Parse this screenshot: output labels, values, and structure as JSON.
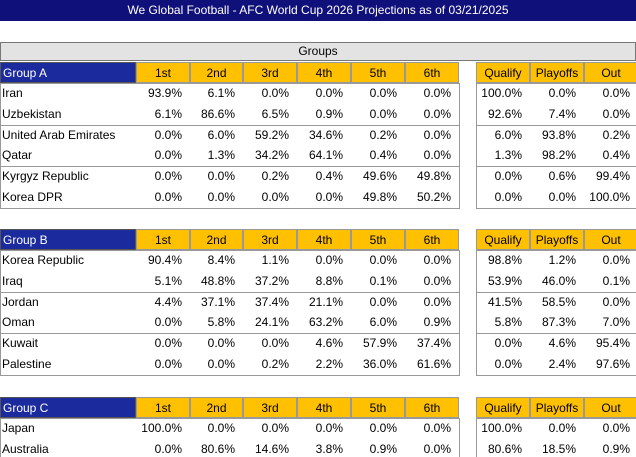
{
  "header": {
    "title": "We Global Football - AFC World Cup 2026 Projections as of 03/21/2025",
    "section": "Groups"
  },
  "groups": [
    {
      "name": "Group A",
      "columns": [
        "1st",
        "2nd",
        "3rd",
        "4th",
        "5th",
        "6th"
      ],
      "summary_columns": [
        "Qualify",
        "Playoffs",
        "Out"
      ],
      "rows": [
        {
          "team": "Iran",
          "places": [
            "93.9%",
            "6.1%",
            "0.0%",
            "0.0%",
            "0.0%",
            "0.0%"
          ],
          "summary": [
            "100.0%",
            "0.0%",
            "0.0%"
          ]
        },
        {
          "team": "Uzbekistan",
          "places": [
            "6.1%",
            "86.6%",
            "6.5%",
            "0.9%",
            "0.0%",
            "0.0%"
          ],
          "summary": [
            "92.6%",
            "7.4%",
            "0.0%"
          ]
        },
        {
          "team": "United Arab Emirates",
          "places": [
            "0.0%",
            "6.0%",
            "59.2%",
            "34.6%",
            "0.2%",
            "0.0%"
          ],
          "summary": [
            "6.0%",
            "93.8%",
            "0.2%"
          ]
        },
        {
          "team": "Qatar",
          "places": [
            "0.0%",
            "1.3%",
            "34.2%",
            "64.1%",
            "0.4%",
            "0.0%"
          ],
          "summary": [
            "1.3%",
            "98.2%",
            "0.4%"
          ]
        },
        {
          "team": "Kyrgyz Republic",
          "places": [
            "0.0%",
            "0.0%",
            "0.2%",
            "0.4%",
            "49.6%",
            "49.8%"
          ],
          "summary": [
            "0.0%",
            "0.6%",
            "99.4%"
          ]
        },
        {
          "team": "Korea DPR",
          "places": [
            "0.0%",
            "0.0%",
            "0.0%",
            "0.0%",
            "49.8%",
            "50.2%"
          ],
          "summary": [
            "0.0%",
            "0.0%",
            "100.0%"
          ]
        }
      ]
    },
    {
      "name": "Group B",
      "columns": [
        "1st",
        "2nd",
        "3rd",
        "4th",
        "5th",
        "6th"
      ],
      "summary_columns": [
        "Qualify",
        "Playoffs",
        "Out"
      ],
      "rows": [
        {
          "team": "Korea Republic",
          "places": [
            "90.4%",
            "8.4%",
            "1.1%",
            "0.0%",
            "0.0%",
            "0.0%"
          ],
          "summary": [
            "98.8%",
            "1.2%",
            "0.0%"
          ]
        },
        {
          "team": "Iraq",
          "places": [
            "5.1%",
            "48.8%",
            "37.2%",
            "8.8%",
            "0.1%",
            "0.0%"
          ],
          "summary": [
            "53.9%",
            "46.0%",
            "0.1%"
          ]
        },
        {
          "team": "Jordan",
          "places": [
            "4.4%",
            "37.1%",
            "37.4%",
            "21.1%",
            "0.0%",
            "0.0%"
          ],
          "summary": [
            "41.5%",
            "58.5%",
            "0.0%"
          ]
        },
        {
          "team": "Oman",
          "places": [
            "0.0%",
            "5.8%",
            "24.1%",
            "63.2%",
            "6.0%",
            "0.9%"
          ],
          "summary": [
            "5.8%",
            "87.3%",
            "7.0%"
          ]
        },
        {
          "team": "Kuwait",
          "places": [
            "0.0%",
            "0.0%",
            "0.0%",
            "4.6%",
            "57.9%",
            "37.4%"
          ],
          "summary": [
            "0.0%",
            "4.6%",
            "95.4%"
          ]
        },
        {
          "team": "Palestine",
          "places": [
            "0.0%",
            "0.0%",
            "0.2%",
            "2.2%",
            "36.0%",
            "61.6%"
          ],
          "summary": [
            "0.0%",
            "2.4%",
            "97.6%"
          ]
        }
      ]
    },
    {
      "name": "Group C",
      "columns": [
        "1st",
        "2nd",
        "3rd",
        "4th",
        "5th",
        "6th"
      ],
      "summary_columns": [
        "Qualify",
        "Playoffs",
        "Out"
      ],
      "rows": [
        {
          "team": "Japan",
          "places": [
            "100.0%",
            "0.0%",
            "0.0%",
            "0.0%",
            "0.0%",
            "0.0%"
          ],
          "summary": [
            "100.0%",
            "0.0%",
            "0.0%"
          ]
        },
        {
          "team": "Australia",
          "places": [
            "0.0%",
            "80.6%",
            "14.6%",
            "3.8%",
            "0.9%",
            "0.0%"
          ],
          "summary": [
            "80.6%",
            "18.5%",
            "0.9%"
          ]
        }
      ]
    }
  ]
}
